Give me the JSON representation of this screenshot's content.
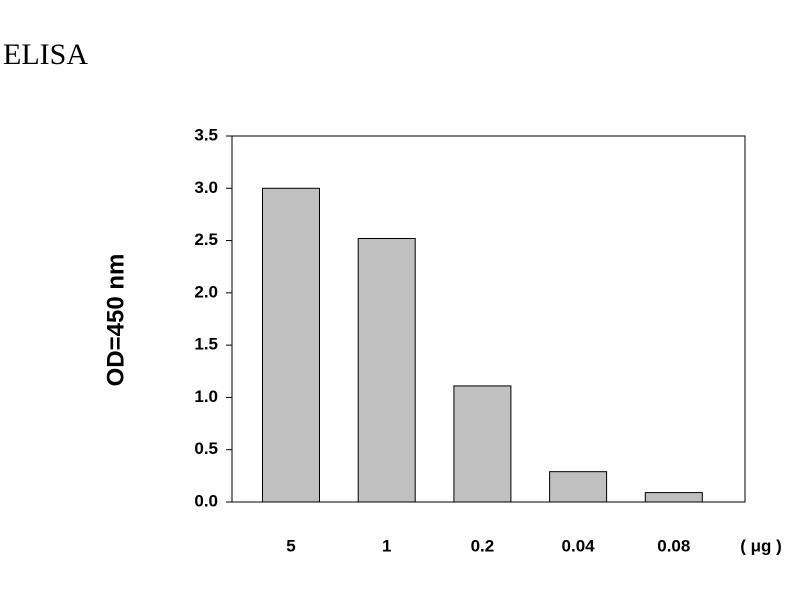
{
  "chart_data": {
    "type": "bar",
    "title": "ELISA",
    "y_label": "OD=450 nm",
    "x_label": "( μg )",
    "categories": [
      "5",
      "1",
      "0.2",
      "0.04",
      "0.08"
    ],
    "values": [
      3.0,
      2.52,
      1.11,
      0.29,
      0.09
    ],
    "color": "#c0c0c0",
    "ylim": [
      0,
      3.5
    ],
    "yticks": [
      {
        "value": 0,
        "label": "0.0"
      },
      0.5,
      {
        "value": 1,
        "label": "1.0"
      },
      1.5,
      {
        "value": 2,
        "label": "2.0"
      },
      2.5,
      {
        "value": 3,
        "label": "3.0"
      },
      3.5
    ],
    "grid": false
  }
}
